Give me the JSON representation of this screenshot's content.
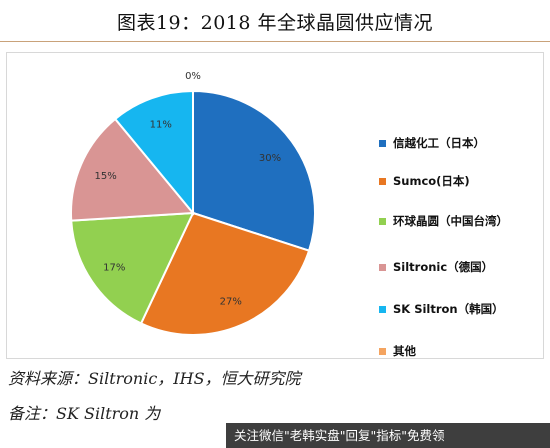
{
  "title": "图表19：2018 年全球晶圆供应情况",
  "source_text": "资料来源：Siltronic，IHS，恒大研究院",
  "note_text": "备注：SK Siltron 为",
  "watermark_text": "关注微信\"老韩实盘\"回复\"指标\"免费领",
  "chart_data": {
    "type": "pie",
    "categories": [
      "信越化工（日本）",
      "Sumco(日本)",
      "环球晶圆（中国台湾）",
      "Siltronic（德国）",
      "SK Siltron（韩国）",
      "其他"
    ],
    "values": [
      30,
      27,
      17,
      15,
      11,
      0
    ],
    "data_labels": [
      "30%",
      "27%",
      "17%",
      "15%",
      "11%",
      "0%"
    ],
    "colors": [
      "#1f6fbf",
      "#e87722",
      "#92d050",
      "#d99594",
      "#16b6f0",
      "#f4a460"
    ],
    "legend_position": "right"
  }
}
